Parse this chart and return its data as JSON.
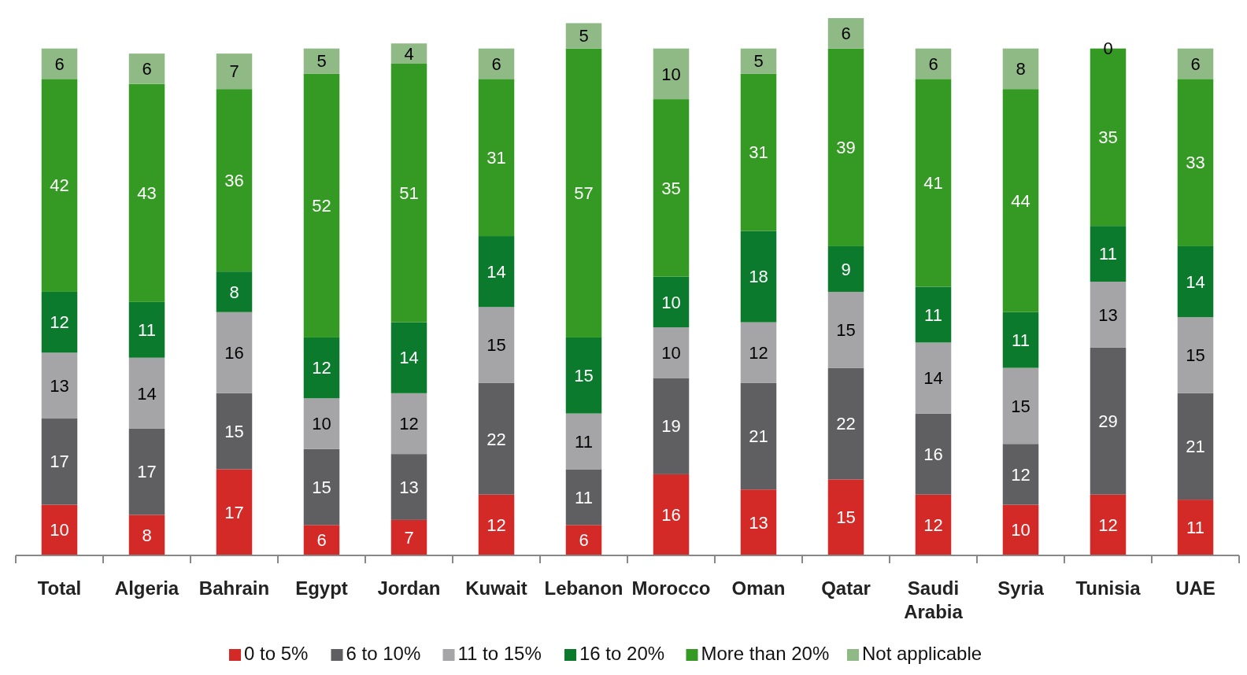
{
  "chart_data": {
    "type": "bar",
    "stacked": true,
    "data_labels": true,
    "legend": "bottom",
    "grid": false,
    "categories": [
      "Total",
      "Algeria",
      "Bahrain",
      "Egypt",
      "Jordan",
      "Kuwait",
      "Lebanon",
      "Morocco",
      "Oman",
      "Qatar",
      "Saudi Arabia",
      "Syria",
      "Tunisia",
      "UAE"
    ],
    "series": [
      {
        "name": "0 to 5%",
        "color": "#d42a27",
        "values": [
          10,
          8,
          17,
          6,
          7,
          12,
          6,
          16,
          13,
          15,
          12,
          10,
          12,
          11
        ]
      },
      {
        "name": "6 to 10%",
        "color": "#5f5f61",
        "values": [
          17,
          17,
          15,
          15,
          13,
          22,
          11,
          19,
          21,
          22,
          16,
          12,
          29,
          21
        ]
      },
      {
        "name": "11 to 15%",
        "color": "#a5a5a7",
        "values": [
          13,
          14,
          16,
          10,
          12,
          15,
          11,
          10,
          12,
          15,
          14,
          15,
          13,
          15
        ]
      },
      {
        "name": "16 to 20%",
        "color": "#0c7a2c",
        "values": [
          12,
          11,
          8,
          12,
          14,
          14,
          15,
          10,
          18,
          9,
          11,
          11,
          11,
          14
        ]
      },
      {
        "name": "More than 20%",
        "color": "#349a23",
        "values": [
          42,
          43,
          36,
          52,
          51,
          31,
          57,
          35,
          31,
          39,
          41,
          44,
          35,
          33
        ]
      },
      {
        "name": "Not applicable",
        "color": "#8fba86",
        "values": [
          6,
          6,
          7,
          5,
          4,
          6,
          5,
          10,
          5,
          6,
          6,
          8,
          0,
          6
        ]
      }
    ]
  }
}
